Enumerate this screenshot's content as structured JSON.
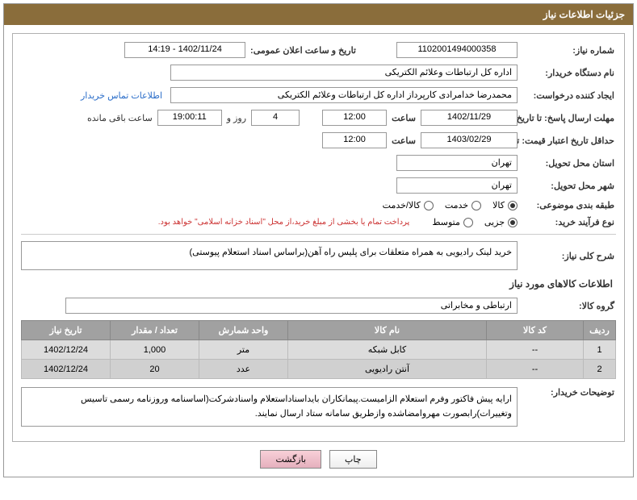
{
  "header": {
    "title": "جزئیات اطلاعات نیاز"
  },
  "fields": {
    "req_no_label": "شماره نیاز:",
    "req_no": "1102001494000358",
    "announce_label": "تاریخ و ساعت اعلان عمومی:",
    "announce_value": "1402/11/24 - 14:19",
    "buyer_org_label": "نام دستگاه خریدار:",
    "buyer_org": "اداره کل ارتباطات وعلائم الکتریکی",
    "creator_label": "ایجاد کننده درخواست:",
    "creator": "محمدرضا خدامرادی کارپرداز اداره کل ارتباطات وعلائم الکتریکی",
    "contact_link": "اطلاعات تماس خریدار",
    "deadline_label": "مهلت ارسال پاسخ: تا تاریخ:",
    "deadline_date": "1402/11/29",
    "time_label": "ساعت",
    "deadline_time": "12:00",
    "days": "4",
    "days_suffix_a": "روز و",
    "remaining_time": "19:00:11",
    "days_suffix_b": "ساعت باقی مانده",
    "validity_label": "حداقل تاریخ اعتبار قیمت: تا تاریخ:",
    "validity_date": "1403/02/29",
    "validity_time": "12:00",
    "province_label": "استان محل تحویل:",
    "province": "تهران",
    "city_label": "شهر محل تحویل:",
    "city": "تهران",
    "category_label": "طبقه بندی موضوعی:",
    "cat1": "کالا",
    "cat2": "خدمت",
    "cat3": "کالا/خدمت",
    "process_label": "نوع فرآیند خرید:",
    "proc1": "جزیی",
    "proc2": "متوسط",
    "process_note": "پرداخت تمام یا بخشی از مبلغ خرید،از محل \"اسناد خزانه اسلامی\" خواهد بود.",
    "summary_label": "شرح کلی نیاز:",
    "summary": "خرید لینک رادیویی به همراه متعلقات برای پلیس راه آهن(براساس اسناد استعلام پیوستی)",
    "items_title": "اطلاعات کالاهای مورد نیاز",
    "group_label": "گروه کالا:",
    "group": "ارتباطی و مخابراتی",
    "buyer_note_label": "توضیحات خریدار:",
    "buyer_note": "ارایه پیش فاکتور وفرم استعلام الزامیست.پیمانکاران بایداسناداستعلام واسنادشرکت(اساسنامه وروزنامه رسمی تاسیس وتغییرات)رابصورت مهروامضاشده وازطریق سامانه ستاد ارسال نمایند."
  },
  "table": {
    "headers": [
      "ردیف",
      "کد کالا",
      "نام کالا",
      "واحد شمارش",
      "تعداد / مقدار",
      "تاریخ نیاز"
    ],
    "rows": [
      [
        "1",
        "--",
        "کابل شبکه",
        "متر",
        "1,000",
        "1402/12/24"
      ],
      [
        "2",
        "--",
        "آنتن رادیویی",
        "عدد",
        "20",
        "1402/12/24"
      ]
    ]
  },
  "buttons": {
    "print": "چاپ",
    "back": "بازگشت"
  }
}
